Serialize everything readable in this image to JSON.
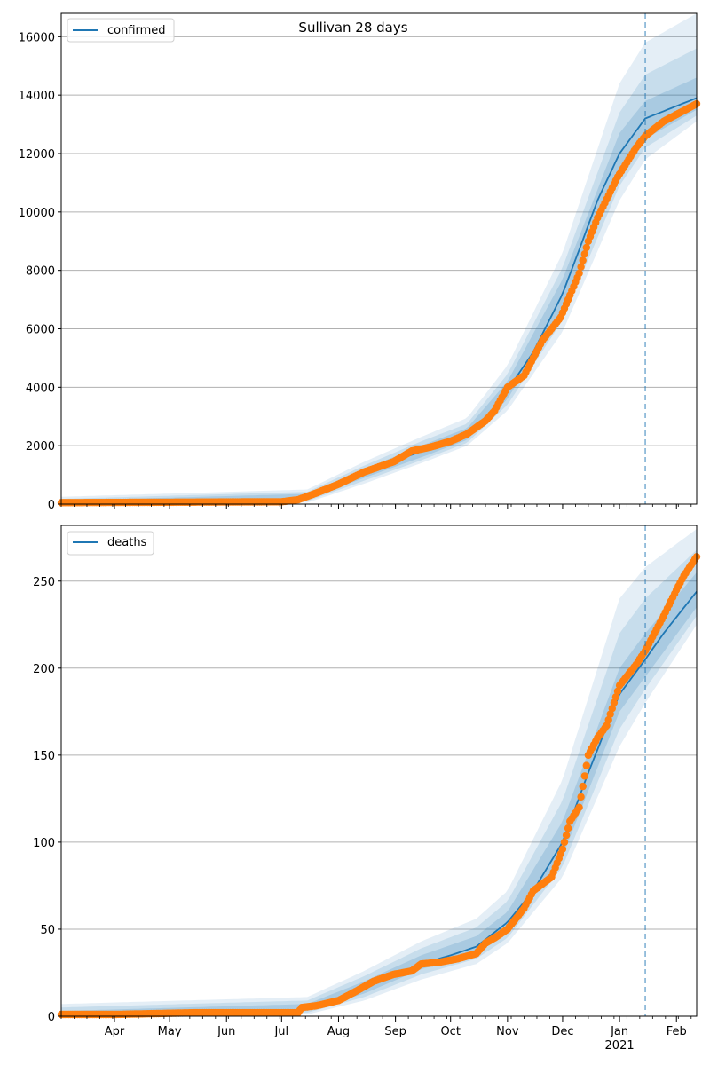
{
  "figure": {
    "title": "Sullivan 28 days",
    "colors": {
      "model_line": "#1f77b4",
      "band": "#1f77b4",
      "observed_points": "#ff7f0e",
      "forecast_start_line": "#1f77b4",
      "grid": "#b0b0b0"
    }
  },
  "chart_data": [
    {
      "type": "line",
      "panel": "top",
      "legend": "confirmed",
      "legend_placement": "top-left",
      "grid": "horizontal",
      "y_ticks": [
        0,
        2000,
        4000,
        6000,
        8000,
        10000,
        12000,
        14000,
        16000
      ],
      "y_tick_labels": [
        "0",
        "2000",
        "4000",
        "6000",
        "8000",
        "10000",
        "12000",
        "14000",
        "16000"
      ],
      "ylim": [
        0,
        16800
      ],
      "xlim": [
        "2020-03-03",
        "2021-02-12"
      ],
      "forecast_start": "2021-01-15",
      "median": [
        [
          "2020-03-03",
          60
        ],
        [
          "2020-07-01",
          90
        ],
        [
          "2020-07-15",
          250
        ],
        [
          "2020-08-01",
          650
        ],
        [
          "2020-08-15",
          1050
        ],
        [
          "2020-09-01",
          1500
        ],
        [
          "2020-09-15",
          1800
        ],
        [
          "2020-10-01",
          2100
        ],
        [
          "2020-10-10",
          2400
        ],
        [
          "2020-10-20",
          2900
        ],
        [
          "2020-11-01",
          3900
        ],
        [
          "2020-11-15",
          5200
        ],
        [
          "2020-12-01",
          7200
        ],
        [
          "2020-12-10",
          8700
        ],
        [
          "2020-12-20",
          10400
        ],
        [
          "2021-01-01",
          12000
        ],
        [
          "2021-01-15",
          13200
        ],
        [
          "2021-01-25",
          13450
        ],
        [
          "2021-02-12",
          13900
        ]
      ],
      "inner_band": [
        [
          "2020-03-03",
          0,
          120
        ],
        [
          "2020-07-15",
          150,
          350
        ],
        [
          "2020-08-15",
          900,
          1200
        ],
        [
          "2020-09-15",
          1600,
          2000
        ],
        [
          "2020-10-10",
          2200,
          2600
        ],
        [
          "2020-11-01",
          3600,
          4200
        ],
        [
          "2020-12-01",
          6700,
          7700
        ],
        [
          "2021-01-01",
          11300,
          12700
        ],
        [
          "2021-01-15",
          12500,
          13800
        ],
        [
          "2021-02-12",
          13500,
          14600
        ]
      ],
      "middle_band": [
        [
          "2020-03-03",
          0,
          180
        ],
        [
          "2020-07-15",
          100,
          420
        ],
        [
          "2020-08-15",
          800,
          1320
        ],
        [
          "2020-09-15",
          1500,
          2150
        ],
        [
          "2020-10-10",
          2100,
          2750
        ],
        [
          "2020-11-01",
          3400,
          4450
        ],
        [
          "2020-12-01",
          6300,
          8100
        ],
        [
          "2021-01-01",
          10900,
          13400
        ],
        [
          "2021-01-15",
          12200,
          14700
        ],
        [
          "2021-02-12",
          13300,
          15600
        ]
      ],
      "outer_band": [
        [
          "2020-03-03",
          0,
          250
        ],
        [
          "2020-07-15",
          50,
          500
        ],
        [
          "2020-08-15",
          700,
          1450
        ],
        [
          "2020-09-15",
          1400,
          2300
        ],
        [
          "2020-10-10",
          2000,
          2950
        ],
        [
          "2020-11-01",
          3200,
          4750
        ],
        [
          "2020-12-01",
          5900,
          8600
        ],
        [
          "2021-01-01",
          10400,
          14400
        ],
        [
          "2021-01-15",
          11800,
          15800
        ],
        [
          "2021-02-12",
          13100,
          16800
        ]
      ],
      "observed": [
        [
          "2020-03-03",
          50
        ],
        [
          "2020-07-01",
          80
        ],
        [
          "2020-07-10",
          150
        ],
        [
          "2020-07-20",
          380
        ],
        [
          "2020-08-01",
          680
        ],
        [
          "2020-08-15",
          1100
        ],
        [
          "2020-08-31",
          1450
        ],
        [
          "2020-09-10",
          1820
        ],
        [
          "2020-09-20",
          1950
        ],
        [
          "2020-10-01",
          2150
        ],
        [
          "2020-10-10",
          2400
        ],
        [
          "2020-10-20",
          2850
        ],
        [
          "2020-10-25",
          3200
        ],
        [
          "2020-11-01",
          4000
        ],
        [
          "2020-11-10",
          4400
        ],
        [
          "2020-11-20",
          5600
        ],
        [
          "2020-11-30",
          6400
        ],
        [
          "2020-12-10",
          7900
        ],
        [
          "2020-12-15",
          9000
        ],
        [
          "2020-12-20",
          9800
        ],
        [
          "2020-12-31",
          11200
        ],
        [
          "2021-01-10",
          12200
        ],
        [
          "2021-01-15",
          12600
        ],
        [
          "2021-01-25",
          13100
        ],
        [
          "2021-02-12",
          13700
        ]
      ]
    },
    {
      "type": "line",
      "panel": "bottom",
      "legend": "deaths",
      "legend_placement": "top-left",
      "grid": "horizontal",
      "y_ticks": [
        0,
        50,
        100,
        150,
        200,
        250
      ],
      "y_tick_labels": [
        "0",
        "50",
        "100",
        "150",
        "200",
        "250"
      ],
      "ylim": [
        0,
        282
      ],
      "xlim": [
        "2020-03-03",
        "2021-02-12"
      ],
      "forecast_start": "2021-01-15",
      "x_tick_labels": [
        [
          "2020-04-01",
          "Apr"
        ],
        [
          "2020-05-01",
          "May"
        ],
        [
          "2020-06-01",
          "Jun"
        ],
        [
          "2020-07-01",
          "Jul"
        ],
        [
          "2020-08-01",
          "Aug"
        ],
        [
          "2020-09-01",
          "Sep"
        ],
        [
          "2020-10-01",
          "Oct"
        ],
        [
          "2020-11-01",
          "Nov"
        ],
        [
          "2020-12-01",
          "Dec"
        ],
        [
          "2021-01-01",
          "Jan"
        ],
        [
          "2021-02-01",
          "Feb"
        ]
      ],
      "x_year_label": "2021",
      "median": [
        [
          "2020-03-03",
          1
        ],
        [
          "2020-07-01",
          2
        ],
        [
          "2020-07-15",
          4
        ],
        [
          "2020-08-01",
          8
        ],
        [
          "2020-08-15",
          16
        ],
        [
          "2020-09-01",
          24
        ],
        [
          "2020-09-15",
          30
        ],
        [
          "2020-10-01",
          35
        ],
        [
          "2020-10-15",
          40
        ],
        [
          "2020-11-01",
          54
        ],
        [
          "2020-11-15",
          72
        ],
        [
          "2020-12-01",
          100
        ],
        [
          "2020-12-15",
          140
        ],
        [
          "2021-01-01",
          185
        ],
        [
          "2021-01-15",
          205
        ],
        [
          "2021-01-25",
          220
        ],
        [
          "2021-02-12",
          244
        ]
      ],
      "inner_band": [
        [
          "2020-03-03",
          0,
          3
        ],
        [
          "2020-07-15",
          3,
          7
        ],
        [
          "2020-08-15",
          13,
          20
        ],
        [
          "2020-09-15",
          27,
          35
        ],
        [
          "2020-10-15",
          36,
          46
        ],
        [
          "2020-11-01",
          48,
          60
        ],
        [
          "2020-12-01",
          92,
          112
        ],
        [
          "2021-01-01",
          175,
          200
        ],
        [
          "2021-01-15",
          195,
          220
        ],
        [
          "2021-02-12",
          235,
          255
        ]
      ],
      "middle_band": [
        [
          "2020-03-03",
          0,
          5
        ],
        [
          "2020-07-15",
          2,
          9
        ],
        [
          "2020-08-15",
          11,
          23
        ],
        [
          "2020-09-15",
          24,
          39
        ],
        [
          "2020-10-15",
          33,
          51
        ],
        [
          "2020-11-01",
          45,
          66
        ],
        [
          "2020-12-01",
          86,
          124
        ],
        [
          "2021-01-01",
          165,
          220
        ],
        [
          "2021-01-15",
          188,
          240
        ],
        [
          "2021-02-12",
          230,
          268
        ]
      ],
      "outer_band": [
        [
          "2020-03-03",
          0,
          7
        ],
        [
          "2020-07-15",
          1,
          11
        ],
        [
          "2020-08-15",
          9,
          26
        ],
        [
          "2020-09-15",
          21,
          43
        ],
        [
          "2020-10-15",
          30,
          56
        ],
        [
          "2020-11-01",
          42,
          72
        ],
        [
          "2020-12-01",
          80,
          136
        ],
        [
          "2021-01-01",
          155,
          240
        ],
        [
          "2021-01-15",
          180,
          258
        ],
        [
          "2021-02-12",
          225,
          280
        ]
      ],
      "observed": [
        [
          "2020-03-03",
          1
        ],
        [
          "2020-04-01",
          1
        ],
        [
          "2020-05-15",
          2
        ],
        [
          "2020-07-10",
          2
        ],
        [
          "2020-07-12",
          5
        ],
        [
          "2020-07-20",
          6
        ],
        [
          "2020-08-01",
          9
        ],
        [
          "2020-08-10",
          14
        ],
        [
          "2020-08-20",
          20
        ],
        [
          "2020-08-31",
          24
        ],
        [
          "2020-09-10",
          26
        ],
        [
          "2020-09-15",
          30
        ],
        [
          "2020-09-25",
          31
        ],
        [
          "2020-10-05",
          33
        ],
        [
          "2020-10-15",
          36
        ],
        [
          "2020-10-20",
          42
        ],
        [
          "2020-10-25",
          45
        ],
        [
          "2020-11-01",
          50
        ],
        [
          "2020-11-10",
          62
        ],
        [
          "2020-11-15",
          72
        ],
        [
          "2020-11-25",
          80
        ],
        [
          "2020-12-01",
          96
        ],
        [
          "2020-12-05",
          112
        ],
        [
          "2020-12-10",
          120
        ],
        [
          "2020-12-15",
          150
        ],
        [
          "2020-12-20",
          160
        ],
        [
          "2020-12-25",
          167
        ],
        [
          "2021-01-01",
          190
        ],
        [
          "2021-01-10",
          202
        ],
        [
          "2021-01-15",
          210
        ],
        [
          "2021-01-20",
          220
        ],
        [
          "2021-01-25",
          230
        ],
        [
          "2021-02-01",
          245
        ],
        [
          "2021-02-05",
          253
        ],
        [
          "2021-02-12",
          264
        ]
      ]
    }
  ]
}
